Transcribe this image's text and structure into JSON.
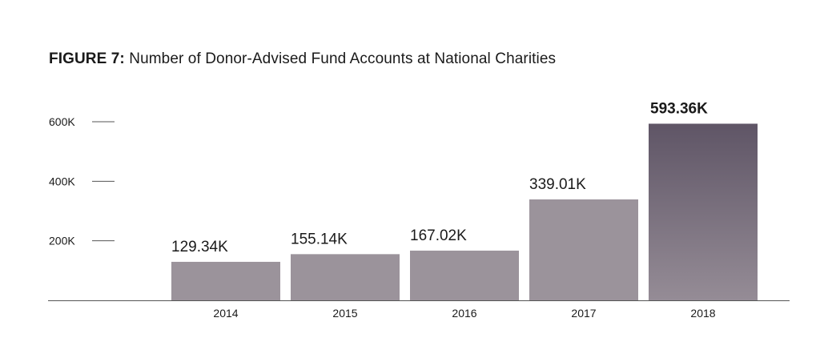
{
  "header": {
    "prefix": "FIGURE 7:",
    "title": "Number of Donor-Advised Fund Accounts at National Charities"
  },
  "colors": {
    "bar": "#9b939b",
    "highlight_top": "#5f5566",
    "highlight_bottom": "#958c96",
    "axis": "#555555",
    "text": "#1a1a1a"
  },
  "chart_data": {
    "type": "bar",
    "categories": [
      "2014",
      "2015",
      "2016",
      "2017",
      "2018"
    ],
    "values": [
      129.34,
      155.14,
      167.02,
      339.01,
      593.36
    ],
    "data_labels": [
      "129.34K",
      "155.14K",
      "167.02K",
      "339.01K",
      "593.36K"
    ],
    "highlight_index": 4,
    "yticks": [
      200,
      400,
      600
    ],
    "ytick_labels": [
      "200K",
      "400K",
      "600K"
    ],
    "ylim": [
      0,
      600
    ],
    "grid": false,
    "legend": "none"
  }
}
